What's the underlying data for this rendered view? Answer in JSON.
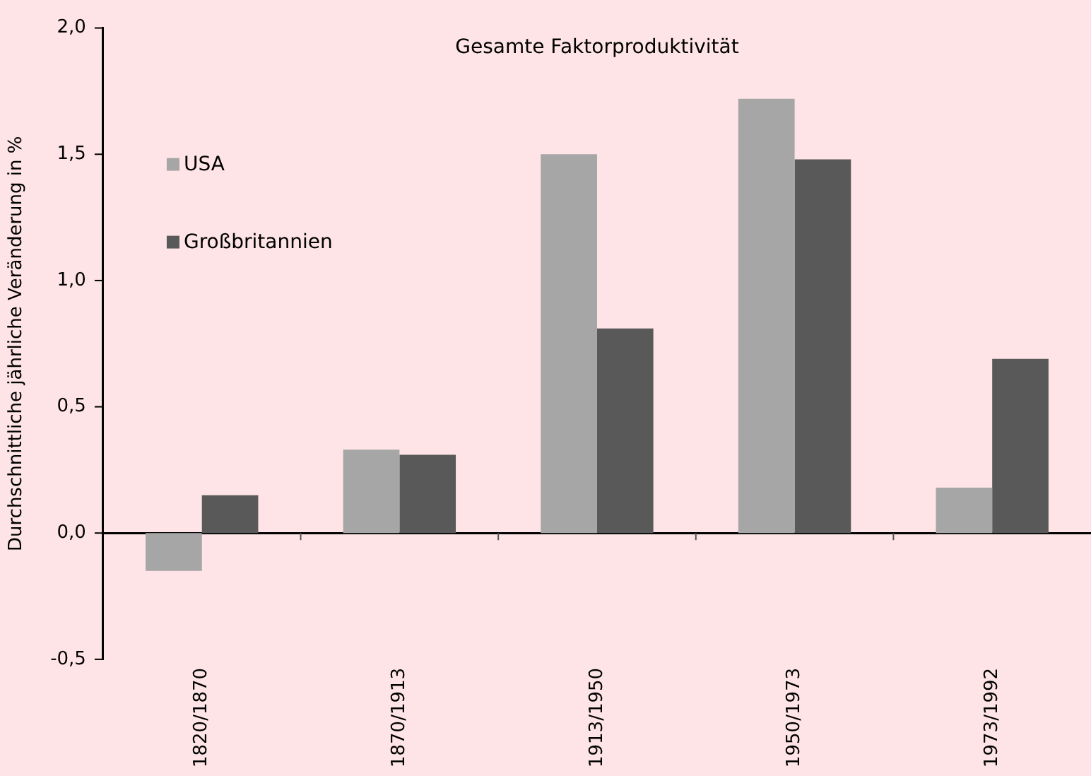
{
  "chart_data": {
    "type": "bar",
    "title": "Gesamte Faktorproduktivität",
    "ylabel": "Durchschnittliche jährliche Veränderung in %",
    "categories": [
      "1820/1870",
      "1870/1913",
      "1913/1950",
      "1950/1973",
      "1973/1992"
    ],
    "series": [
      {
        "name": "USA",
        "color": "#a6a6a6",
        "values": [
          -0.15,
          0.33,
          1.5,
          1.72,
          0.18
        ]
      },
      {
        "name": "Großbritannien",
        "color": "#595959",
        "values": [
          0.15,
          0.31,
          0.81,
          1.48,
          0.69
        ]
      }
    ],
    "ylim": [
      -0.5,
      2
    ],
    "yticks": [
      {
        "value": -0.5,
        "label": "-0,5"
      },
      {
        "value": 0,
        "label": "0,0"
      },
      {
        "value": 0.5,
        "label": "0,5"
      },
      {
        "value": 1,
        "label": "1,0"
      },
      {
        "value": 1.5,
        "label": "1,5"
      },
      {
        "value": 2,
        "label": "2,0"
      }
    ],
    "legend": "top left"
  }
}
